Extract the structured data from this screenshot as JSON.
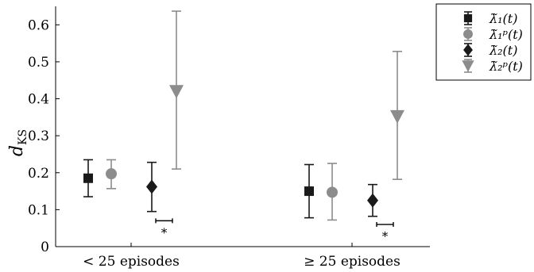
{
  "chart_data": {
    "type": "scatter",
    "title": "",
    "xlabel": "",
    "ylabel": "d",
    "ylabel_subscript": "KS",
    "categories": [
      "< 25 episodes",
      "≥ 25 episodes"
    ],
    "ylim": [
      0,
      0.65
    ],
    "yticks": [
      "0",
      "0.1",
      "0.2",
      "0.3",
      "0.4",
      "0.5",
      "0.6"
    ],
    "grid": false,
    "legend_position": "top-right",
    "series": [
      {
        "name": "λ̃₁(t)",
        "marker": "square",
        "color": "#1a1a1a",
        "mean": [
          0.185,
          0.15
        ],
        "lower": [
          0.135,
          0.078
        ],
        "upper": [
          0.235,
          0.222
        ]
      },
      {
        "name": "λ̃₁ᵖ(t)",
        "marker": "circle",
        "color": "#8c8c8c",
        "mean": [
          0.197,
          0.147
        ],
        "lower": [
          0.157,
          0.072
        ],
        "upper": [
          0.235,
          0.225
        ]
      },
      {
        "name": "λ̃₂(t)",
        "marker": "diamond",
        "color": "#1a1a1a",
        "mean": [
          0.162,
          0.125
        ],
        "lower": [
          0.095,
          0.082
        ],
        "upper": [
          0.228,
          0.168
        ]
      },
      {
        "name": "λ̃₂ᵖ(t)",
        "marker": "triangle-down",
        "color": "#8c8c8c",
        "mean": [
          0.42,
          0.352
        ],
        "lower": [
          0.21,
          0.182
        ],
        "upper": [
          0.637,
          0.528
        ]
      }
    ],
    "annotations": [
      {
        "text": "*",
        "category": 0,
        "y": 0.07
      },
      {
        "text": "*",
        "category": 1,
        "y": 0.06
      }
    ]
  }
}
